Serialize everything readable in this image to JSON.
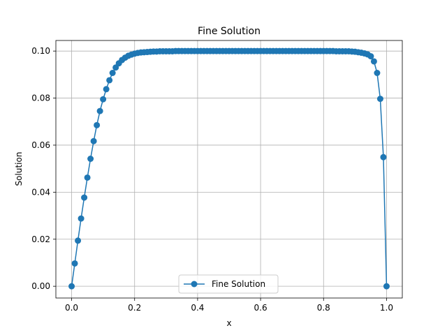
{
  "chart_data": {
    "type": "line",
    "title": "Fine Solution",
    "xlabel": "x",
    "ylabel": "Solution",
    "xlim": [
      -0.05,
      1.05
    ],
    "ylim": [
      -0.005,
      0.1045
    ],
    "xticks": [
      0.0,
      0.2,
      0.4,
      0.6,
      0.8,
      1.0
    ],
    "xtick_labels": [
      "0.0",
      "0.2",
      "0.4",
      "0.6",
      "0.8",
      "1.0"
    ],
    "yticks": [
      0.0,
      0.02,
      0.04,
      0.06,
      0.08,
      0.1
    ],
    "ytick_labels": [
      "0.00",
      "0.02",
      "0.04",
      "0.06",
      "0.08",
      "0.10"
    ],
    "grid": true,
    "legend_position": "lower center",
    "series": [
      {
        "name": "Fine Solution",
        "color": "#1f77b4",
        "marker": "circle",
        "x": [
          0.0,
          0.01,
          0.02,
          0.03,
          0.04,
          0.05,
          0.06,
          0.07,
          0.08,
          0.09,
          0.1,
          0.11,
          0.12,
          0.13,
          0.14,
          0.15,
          0.16,
          0.17,
          0.18,
          0.19,
          0.2,
          0.21,
          0.22,
          0.23,
          0.24,
          0.25,
          0.26,
          0.27,
          0.28,
          0.29,
          0.3,
          0.31,
          0.32,
          0.33,
          0.34,
          0.35,
          0.36,
          0.37,
          0.38,
          0.39,
          0.4,
          0.41,
          0.42,
          0.43,
          0.44,
          0.45,
          0.46,
          0.47,
          0.48,
          0.49,
          0.5,
          0.51,
          0.52,
          0.53,
          0.54,
          0.55,
          0.56,
          0.57,
          0.58,
          0.59,
          0.6,
          0.61,
          0.62,
          0.63,
          0.64,
          0.65,
          0.66,
          0.67,
          0.68,
          0.69,
          0.7,
          0.71,
          0.72,
          0.73,
          0.74,
          0.75,
          0.76,
          0.77,
          0.78,
          0.79,
          0.8,
          0.81,
          0.82,
          0.83,
          0.84,
          0.85,
          0.86,
          0.87,
          0.88,
          0.89,
          0.9,
          0.91,
          0.92,
          0.93,
          0.94,
          0.95,
          0.96,
          0.97,
          0.98,
          0.99,
          1.0
        ],
        "y": [
          0.0,
          0.0097,
          0.0194,
          0.0288,
          0.0377,
          0.0462,
          0.0542,
          0.0617,
          0.0685,
          0.0745,
          0.0795,
          0.0838,
          0.0876,
          0.0907,
          0.093,
          0.0948,
          0.0962,
          0.0972,
          0.098,
          0.0985,
          0.0989,
          0.0992,
          0.0994,
          0.0995,
          0.0996,
          0.0997,
          0.0998,
          0.0998,
          0.0999,
          0.0999,
          0.0999,
          0.0999,
          0.0999,
          0.1,
          0.1,
          0.1,
          0.1,
          0.1,
          0.1,
          0.1,
          0.1,
          0.1,
          0.1,
          0.1,
          0.1,
          0.1,
          0.1,
          0.1,
          0.1,
          0.1,
          0.1,
          0.1,
          0.1,
          0.1,
          0.1,
          0.1,
          0.1,
          0.1,
          0.1,
          0.1,
          0.1,
          0.1,
          0.1,
          0.1,
          0.1,
          0.1,
          0.1,
          0.1,
          0.1,
          0.1,
          0.1,
          0.1,
          0.1,
          0.1,
          0.1,
          0.1,
          0.1,
          0.1,
          0.1,
          0.1,
          0.1,
          0.1,
          0.1,
          0.1,
          0.0999,
          0.0999,
          0.0999,
          0.0999,
          0.0999,
          0.0998,
          0.0997,
          0.0995,
          0.0993,
          0.099,
          0.0986,
          0.0978,
          0.0956,
          0.0907,
          0.0797,
          0.0549,
          0.0
        ]
      }
    ]
  }
}
